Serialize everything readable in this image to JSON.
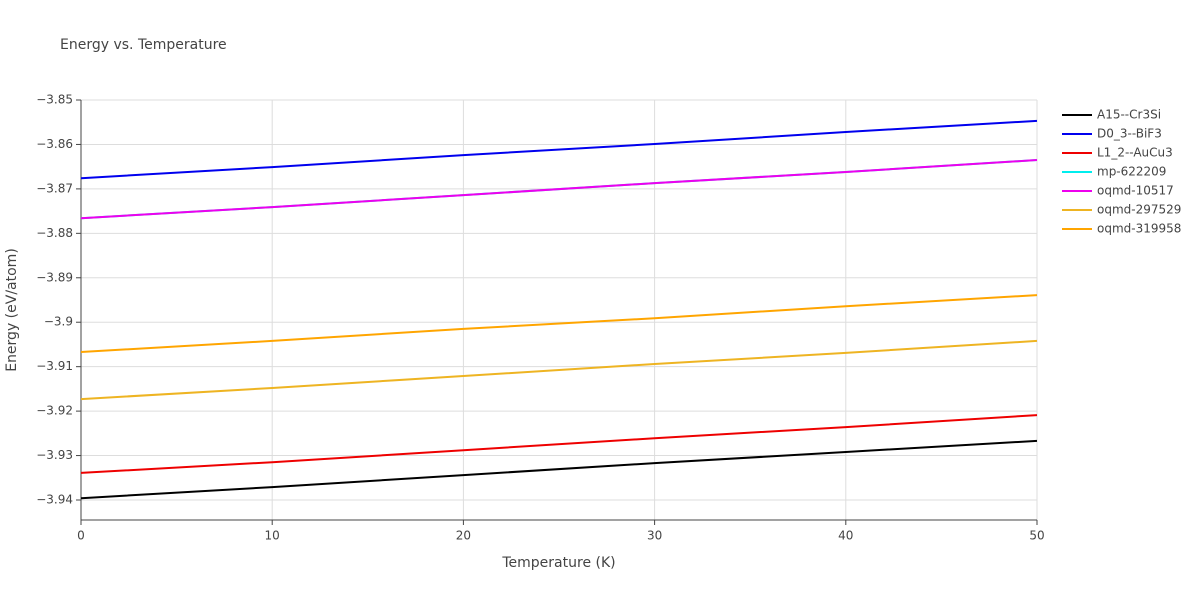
{
  "chart_data": {
    "type": "line",
    "title": "Energy vs. Temperature",
    "x_label": "Temperature (K)",
    "y_label": "Energy (eV/atom)",
    "x": [
      0,
      10,
      20,
      30,
      40,
      50
    ],
    "xlim": [
      0,
      50
    ],
    "xticks": [
      0,
      10,
      20,
      30,
      40,
      50
    ],
    "ylim": [
      -3.9445,
      -3.85
    ],
    "yticks": [
      {
        "value": -3.85,
        "label": "−3.85"
      },
      {
        "value": -3.86,
        "label": "−3.86"
      },
      {
        "value": -3.87,
        "label": "−3.87"
      },
      {
        "value": -3.88,
        "label": "−3.88"
      },
      {
        "value": -3.89,
        "label": "−3.89"
      },
      {
        "value": -3.9,
        "label": "−3.9"
      },
      {
        "value": -3.91,
        "label": "−3.91"
      },
      {
        "value": -3.92,
        "label": "−3.92"
      },
      {
        "value": -3.93,
        "label": "−3.93"
      },
      {
        "value": -3.94,
        "label": "−3.94"
      }
    ],
    "grid": true,
    "series": [
      {
        "name": "A15--Cr3Si",
        "color": "#000000",
        "values": [
          -3.9396,
          -3.9371,
          -3.9344,
          -3.9317,
          -3.9292,
          -3.9267
        ]
      },
      {
        "name": "D0_3--BiF3",
        "color": "#0000ee",
        "values": [
          -3.8676,
          -3.8651,
          -3.8624,
          -3.8599,
          -3.8572,
          -3.8547
        ]
      },
      {
        "name": "L1_2--AuCu3",
        "color": "#ee0000",
        "values": [
          -3.9339,
          -3.9315,
          -3.9288,
          -3.9261,
          -3.9236,
          -3.9209
        ]
      },
      {
        "name": "mp-622209",
        "color": "#00eeee",
        "values": [
          -3.8766,
          -3.8741,
          -3.8714,
          -3.8687,
          -3.8662,
          -3.8635
        ]
      },
      {
        "name": "oqmd-10517",
        "color": "#ee00ee",
        "values": [
          -3.8766,
          -3.8741,
          -3.8714,
          -3.8687,
          -3.8662,
          -3.8635
        ]
      },
      {
        "name": "oqmd-297529",
        "color": "#eeb422",
        "values": [
          -3.9173,
          -3.9148,
          -3.9121,
          -3.9094,
          -3.9069,
          -3.9042
        ]
      },
      {
        "name": "oqmd-319958",
        "color": "#ffa500",
        "values": [
          -3.9067,
          -3.9042,
          -3.9015,
          -3.8991,
          -3.8964,
          -3.8939
        ]
      }
    ]
  }
}
